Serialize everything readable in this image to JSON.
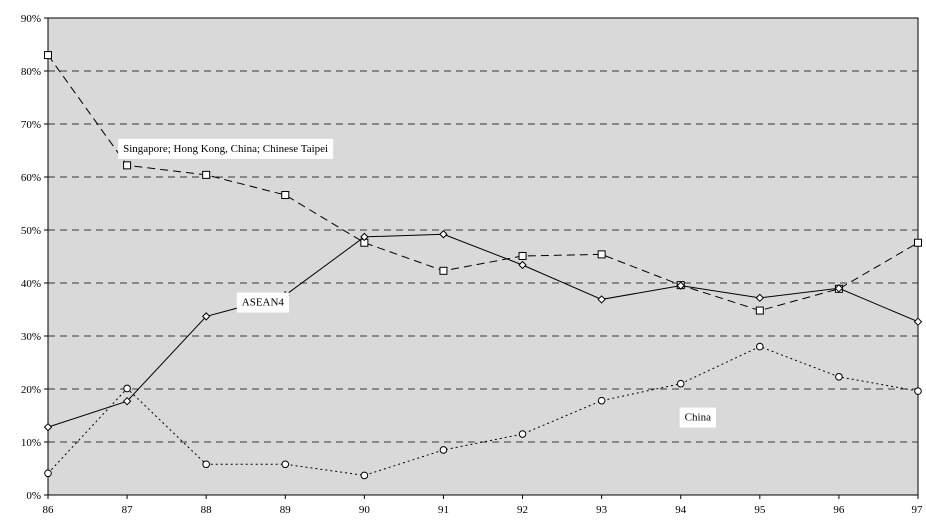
{
  "chart_data": {
    "type": "line",
    "x": [
      "86",
      "87",
      "88",
      "89",
      "90",
      "91",
      "92",
      "93",
      "94",
      "95",
      "96",
      "97"
    ],
    "ylim": [
      0,
      90
    ],
    "yticks": [
      "0%",
      "10%",
      "20%",
      "30%",
      "40%",
      "50%",
      "60%",
      "70%",
      "80%",
      "90%"
    ],
    "grid": "horizontal dashed",
    "plot_background": "#d9d9d9",
    "series": [
      {
        "name": "Singapore; Hong Kong, China; Chinese Taipei",
        "line_style": "dashed",
        "marker": "square",
        "values": [
          83.0,
          62.2,
          60.4,
          56.6,
          47.6,
          42.3,
          45.1,
          45.4,
          39.6,
          34.8,
          38.9,
          47.6
        ]
      },
      {
        "name": "ASEAN4",
        "line_style": "solid",
        "marker": "diamond",
        "values": [
          12.8,
          17.7,
          33.7,
          37.7,
          48.7,
          49.2,
          43.4,
          36.9,
          39.5,
          37.2,
          39.0,
          32.7
        ]
      },
      {
        "name": "China",
        "line_style": "dotted",
        "marker": "circle",
        "values": [
          4.1,
          20.1,
          5.8,
          5.8,
          3.7,
          8.5,
          11.5,
          17.8,
          21.0,
          28.0,
          22.3,
          19.6
        ]
      }
    ]
  }
}
